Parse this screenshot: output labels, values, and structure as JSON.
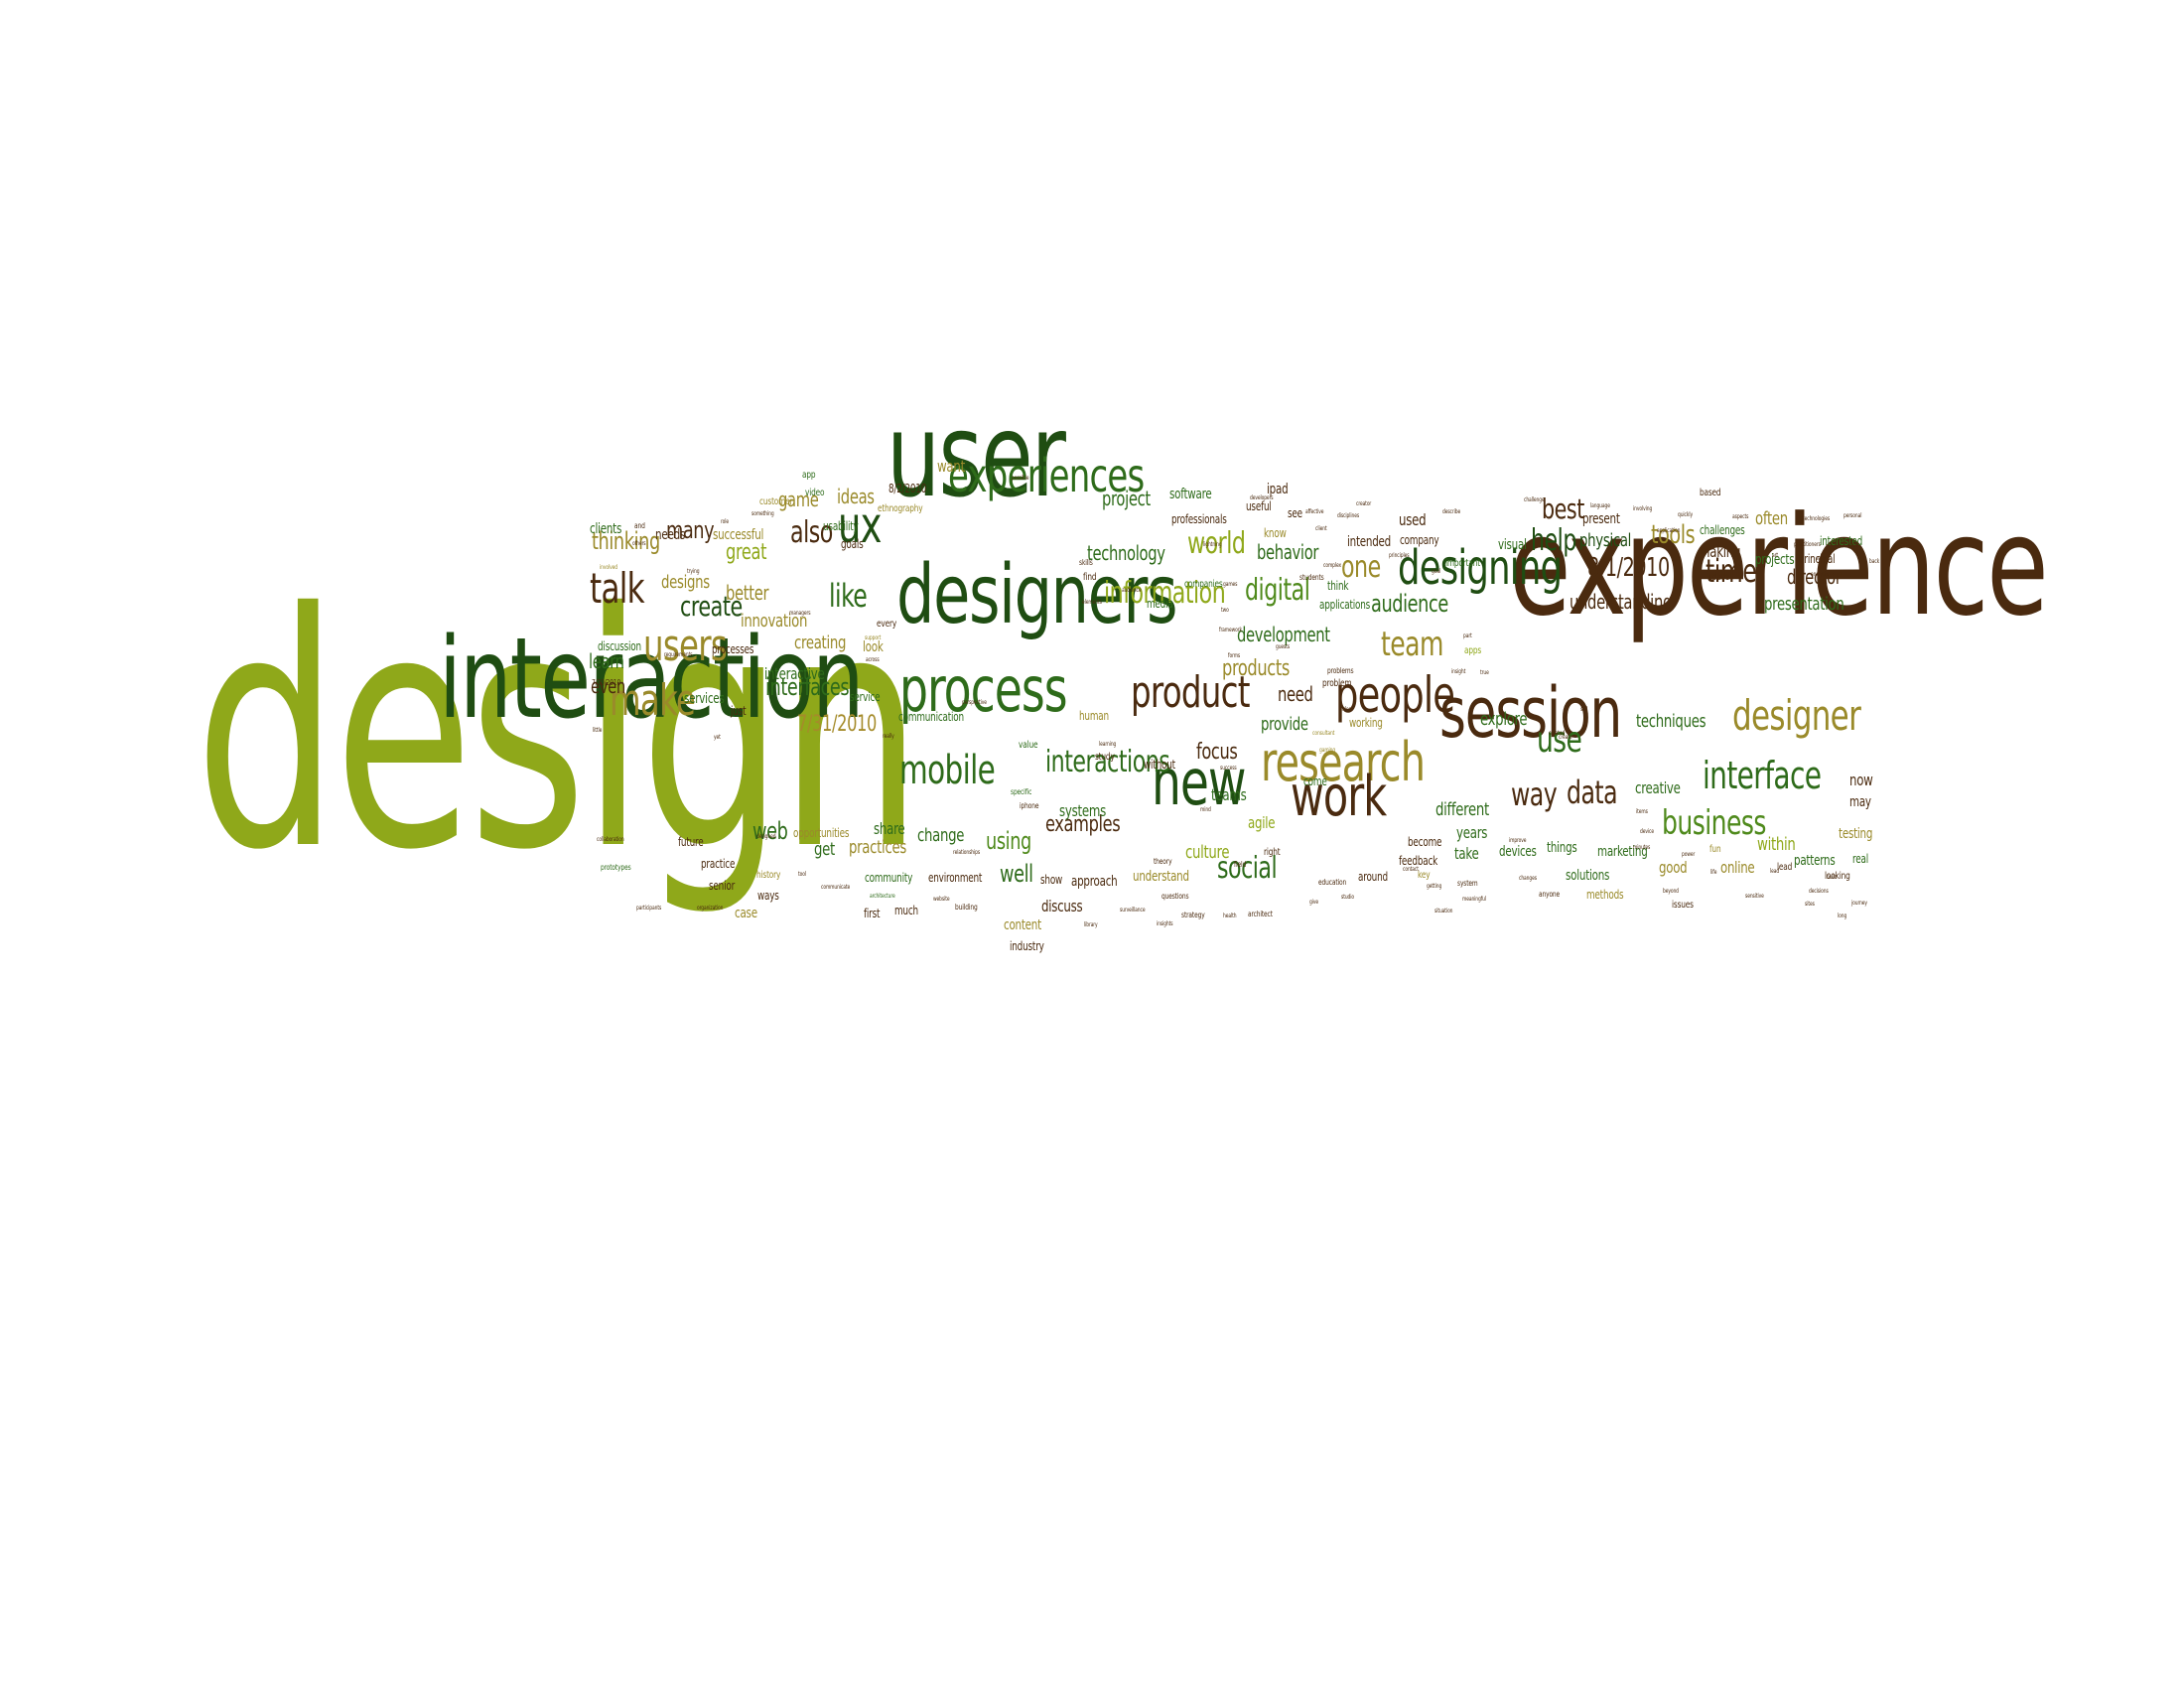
{
  "palette": {
    "lime": "#8fa81a",
    "olive": "#9a8a2a",
    "gold": "#a58b2a",
    "brown": "#4a2a0f",
    "darkgreen": "#1f4d12",
    "green": "#2e6b1a",
    "midgreen": "#4f8a1c"
  },
  "words": [
    {
      "text": "design",
      "color": "lime"
    },
    {
      "text": "experience",
      "color": "brown"
    },
    {
      "text": "interaction",
      "color": "darkgreen"
    },
    {
      "text": "user",
      "color": "darkgreen"
    },
    {
      "text": "designers",
      "color": "darkgreen"
    },
    {
      "text": "process",
      "color": "green"
    },
    {
      "text": "session",
      "color": "brown"
    },
    {
      "text": "research",
      "color": "olive"
    },
    {
      "text": "experiences",
      "color": "green"
    },
    {
      "text": "people",
      "color": "brown"
    },
    {
      "text": "new",
      "color": "darkgreen"
    },
    {
      "text": "work",
      "color": "brown"
    },
    {
      "text": "product",
      "color": "brown"
    },
    {
      "text": "designer",
      "color": "olive"
    },
    {
      "text": "interface",
      "color": "green"
    },
    {
      "text": "designing",
      "color": "darkgreen"
    },
    {
      "text": "mobile",
      "color": "green"
    },
    {
      "text": "users",
      "color": "olive"
    },
    {
      "text": "make",
      "color": "olive"
    },
    {
      "text": "talk",
      "color": "brown"
    },
    {
      "text": "ux",
      "color": "darkgreen"
    },
    {
      "text": "business",
      "color": "midgreen"
    },
    {
      "text": "social",
      "color": "green"
    },
    {
      "text": "interactions",
      "color": "green"
    },
    {
      "text": "information",
      "color": "lime"
    },
    {
      "text": "create",
      "color": "darkgreen"
    },
    {
      "text": "team",
      "color": "olive"
    },
    {
      "text": "use",
      "color": "green"
    },
    {
      "text": "data",
      "color": "brown"
    },
    {
      "text": "way",
      "color": "brown"
    },
    {
      "text": "time",
      "color": "brown"
    },
    {
      "text": "digital",
      "color": "midgreen"
    },
    {
      "text": "world",
      "color": "lime"
    },
    {
      "text": "like",
      "color": "green"
    },
    {
      "text": "also",
      "color": "brown"
    },
    {
      "text": "one",
      "color": "olive"
    },
    {
      "text": "help",
      "color": "darkgreen"
    },
    {
      "text": "best",
      "color": "brown"
    },
    {
      "text": "8/1/2010",
      "color": "brown"
    },
    {
      "text": "tools",
      "color": "olive"
    },
    {
      "text": "audience",
      "color": "green"
    },
    {
      "text": "products",
      "color": "olive"
    },
    {
      "text": "web",
      "color": "green"
    },
    {
      "text": "using",
      "color": "midgreen"
    },
    {
      "text": "examples",
      "color": "brown"
    },
    {
      "text": "well",
      "color": "green"
    },
    {
      "text": "interfaces",
      "color": "green"
    },
    {
      "text": "7/31/2010",
      "color": "gold"
    },
    {
      "text": "many",
      "color": "brown"
    },
    {
      "text": "thinking",
      "color": "olive"
    },
    {
      "text": "great",
      "color": "lime"
    },
    {
      "text": "better",
      "color": "olive"
    },
    {
      "text": "game",
      "color": "olive"
    },
    {
      "text": "ideas",
      "color": "olive"
    },
    {
      "text": "technology",
      "color": "green"
    },
    {
      "text": "behavior",
      "color": "green"
    },
    {
      "text": "development",
      "color": "green"
    },
    {
      "text": "focus",
      "color": "brown"
    },
    {
      "text": "provide",
      "color": "green"
    },
    {
      "text": "need",
      "color": "brown"
    },
    {
      "text": "explore",
      "color": "green"
    },
    {
      "text": "techniques",
      "color": "green"
    },
    {
      "text": "creative",
      "color": "green"
    },
    {
      "text": "presentation",
      "color": "green"
    },
    {
      "text": "director",
      "color": "brown"
    },
    {
      "text": "understanding",
      "color": "brown"
    },
    {
      "text": "physical",
      "color": "darkgreen"
    },
    {
      "text": "project",
      "color": "green"
    },
    {
      "text": "learn",
      "color": "green"
    },
    {
      "text": "even",
      "color": "brown"
    },
    {
      "text": "designs",
      "color": "olive"
    },
    {
      "text": "innovation",
      "color": "olive"
    },
    {
      "text": "creating",
      "color": "olive"
    },
    {
      "text": "interactive",
      "color": "green"
    },
    {
      "text": "services",
      "color": "green"
    },
    {
      "text": "practices",
      "color": "olive"
    },
    {
      "text": "change",
      "color": "green"
    },
    {
      "text": "share",
      "color": "green"
    },
    {
      "text": "get",
      "color": "green"
    },
    {
      "text": "culture",
      "color": "lime"
    },
    {
      "text": "teams",
      "color": "green"
    },
    {
      "text": "agile",
      "color": "lime"
    },
    {
      "text": "years",
      "color": "green"
    },
    {
      "text": "different",
      "color": "green"
    },
    {
      "text": "take",
      "color": "green"
    },
    {
      "text": "devices",
      "color": "green"
    },
    {
      "text": "things",
      "color": "green"
    },
    {
      "text": "marketing",
      "color": "green"
    },
    {
      "text": "solutions",
      "color": "green"
    },
    {
      "text": "good",
      "color": "olive"
    },
    {
      "text": "online",
      "color": "olive"
    },
    {
      "text": "within",
      "color": "lime"
    },
    {
      "text": "patterns",
      "color": "green"
    },
    {
      "text": "testing",
      "color": "olive"
    },
    {
      "text": "now",
      "color": "brown"
    },
    {
      "text": "may",
      "color": "brown"
    },
    {
      "text": "real",
      "color": "green"
    },
    {
      "text": "often",
      "color": "olive"
    },
    {
      "text": "projects",
      "color": "green"
    },
    {
      "text": "interested",
      "color": "green"
    },
    {
      "text": "principal",
      "color": "brown"
    },
    {
      "text": "making",
      "color": "brown"
    },
    {
      "text": "challenges",
      "color": "green"
    },
    {
      "text": "present",
      "color": "brown"
    },
    {
      "text": "visual",
      "color": "green"
    },
    {
      "text": "used",
      "color": "brown"
    },
    {
      "text": "company",
      "color": "brown"
    },
    {
      "text": "intended",
      "color": "brown"
    },
    {
      "text": "applications",
      "color": "green"
    },
    {
      "text": "ipad",
      "color": "brown"
    },
    {
      "text": "software",
      "color": "green"
    },
    {
      "text": "professionals",
      "color": "brown"
    },
    {
      "text": "want",
      "color": "olive"
    },
    {
      "text": "8/2/2010",
      "color": "brown"
    },
    {
      "text": "ethnography",
      "color": "olive"
    },
    {
      "text": "usability",
      "color": "green"
    },
    {
      "text": "goals",
      "color": "brown"
    },
    {
      "text": "successful",
      "color": "olive"
    },
    {
      "text": "needs",
      "color": "brown"
    },
    {
      "text": "clients",
      "color": "green"
    },
    {
      "text": "discussion",
      "color": "green"
    },
    {
      "text": "processes",
      "color": "brown"
    },
    {
      "text": "discuss",
      "color": "brown"
    },
    {
      "text": "content",
      "color": "olive"
    },
    {
      "text": "industry",
      "color": "brown"
    },
    {
      "text": "systems",
      "color": "green"
    },
    {
      "text": "approach",
      "color": "brown"
    },
    {
      "text": "show",
      "color": "brown"
    },
    {
      "text": "understand",
      "color": "olive"
    },
    {
      "text": "community",
      "color": "green"
    },
    {
      "text": "environment",
      "color": "brown"
    },
    {
      "text": "opportunities",
      "color": "olive"
    },
    {
      "text": "ways",
      "color": "brown"
    },
    {
      "text": "case",
      "color": "olive"
    },
    {
      "text": "senior",
      "color": "brown"
    },
    {
      "text": "practice",
      "color": "brown"
    },
    {
      "text": "future",
      "color": "brown"
    },
    {
      "text": "history",
      "color": "olive"
    },
    {
      "text": "much",
      "color": "brown"
    },
    {
      "text": "first",
      "color": "brown"
    },
    {
      "text": "communication",
      "color": "green"
    },
    {
      "text": "human",
      "color": "olive"
    },
    {
      "text": "study",
      "color": "brown"
    },
    {
      "text": "without",
      "color": "brown"
    },
    {
      "text": "companies",
      "color": "green"
    },
    {
      "text": "media",
      "color": "green"
    },
    {
      "text": "working",
      "color": "olive"
    },
    {
      "text": "come",
      "color": "green"
    },
    {
      "text": "around",
      "color": "brown"
    },
    {
      "text": "become",
      "color": "brown"
    },
    {
      "text": "feedback",
      "color": "brown"
    },
    {
      "text": "methods",
      "color": "olive"
    },
    {
      "text": "think",
      "color": "green"
    },
    {
      "text": "problem",
      "color": "brown"
    },
    {
      "text": "just",
      "color": "brown"
    },
    {
      "text": "look",
      "color": "olive"
    },
    {
      "text": "service",
      "color": "green"
    },
    {
      "text": "find",
      "color": "brown"
    },
    {
      "text": "skills",
      "color": "brown"
    },
    {
      "text": "useful",
      "color": "brown"
    },
    {
      "text": "know",
      "color": "olive"
    },
    {
      "text": "see",
      "color": "brown"
    },
    {
      "text": "app",
      "color": "green"
    },
    {
      "text": "video",
      "color": "green"
    },
    {
      "text": "customer",
      "color": "olive"
    },
    {
      "text": "every",
      "color": "brown"
    },
    {
      "text": "right",
      "color": "brown"
    },
    {
      "text": "field",
      "color": "brown"
    },
    {
      "text": "education",
      "color": "brown"
    },
    {
      "text": "key",
      "color": "olive"
    },
    {
      "text": "system",
      "color": "brown"
    },
    {
      "text": "issues",
      "color": "brown"
    },
    {
      "text": "fun",
      "color": "olive"
    },
    {
      "text": "lead",
      "color": "brown"
    },
    {
      "text": "looking",
      "color": "brown"
    },
    {
      "text": "space",
      "color": "brown"
    },
    {
      "text": "important",
      "color": "green"
    },
    {
      "text": "value",
      "color": "green"
    },
    {
      "text": "theory",
      "color": "brown"
    },
    {
      "text": "questions",
      "color": "brown"
    },
    {
      "text": "strategy",
      "color": "brown"
    },
    {
      "text": "architect",
      "color": "brown"
    },
    {
      "text": "anyone",
      "color": "brown"
    },
    {
      "text": "based",
      "color": "brown"
    },
    {
      "text": "specific",
      "color": "green"
    },
    {
      "text": "building",
      "color": "brown"
    },
    {
      "text": "prototypes",
      "color": "green"
    },
    {
      "text": "collaboration",
      "color": "brown"
    },
    {
      "text": "7/30/2010",
      "color": "brown"
    },
    {
      "text": "and",
      "color": "brown"
    },
    {
      "text": "students",
      "color": "brown"
    },
    {
      "text": "problems",
      "color": "brown"
    },
    {
      "text": "apps",
      "color": "lime"
    },
    {
      "text": "iphone",
      "color": "brown"
    },
    {
      "text": "consultant",
      "color": "olive"
    },
    {
      "text": "gaming",
      "color": "olive"
    },
    {
      "text": "perspective",
      "color": "brown"
    },
    {
      "text": "relationships",
      "color": "brown"
    },
    {
      "text": "website",
      "color": "brown"
    },
    {
      "text": "architecture",
      "color": "green"
    },
    {
      "text": "designed",
      "color": "brown"
    },
    {
      "text": "support",
      "color": "olive"
    },
    {
      "text": "something",
      "color": "brown"
    },
    {
      "text": "others",
      "color": "brown"
    },
    {
      "text": "audience",
      "color": "brown"
    },
    {
      "text": "library",
      "color": "brown"
    },
    {
      "text": "complex",
      "color": "brown"
    },
    {
      "text": "describe",
      "color": "brown"
    },
    {
      "text": "challenge",
      "color": "brown"
    },
    {
      "text": "language",
      "color": "brown"
    },
    {
      "text": "involving",
      "color": "brown"
    },
    {
      "text": "technologies",
      "color": "brown"
    },
    {
      "text": "personal",
      "color": "brown"
    },
    {
      "text": "practitioners",
      "color": "brown"
    },
    {
      "text": "easy",
      "color": "brown"
    },
    {
      "text": "quickly",
      "color": "brown"
    },
    {
      "text": "application",
      "color": "brown"
    },
    {
      "text": "aspects",
      "color": "brown"
    },
    {
      "text": "create",
      "color": "brown"
    },
    {
      "text": "build",
      "color": "brown"
    },
    {
      "text": "beyond",
      "color": "brown"
    },
    {
      "text": "journey",
      "color": "brown"
    },
    {
      "text": "long",
      "color": "brown"
    },
    {
      "text": "insight",
      "color": "brown"
    },
    {
      "text": "meaningful",
      "color": "brown"
    },
    {
      "text": "situation",
      "color": "brown"
    },
    {
      "text": "improve",
      "color": "brown"
    },
    {
      "text": "changes",
      "color": "brown"
    },
    {
      "text": "getting",
      "color": "brown"
    },
    {
      "text": "studio",
      "color": "brown"
    },
    {
      "text": "participants",
      "color": "brown"
    },
    {
      "text": "organization",
      "color": "brown"
    },
    {
      "text": "role",
      "color": "brown"
    },
    {
      "text": "managers",
      "color": "brown"
    },
    {
      "text": "trying",
      "color": "brown"
    },
    {
      "text": "involved",
      "color": "olive"
    },
    {
      "text": "requirements",
      "color": "brown"
    },
    {
      "text": "yet",
      "color": "brown"
    },
    {
      "text": "tool",
      "color": "brown"
    },
    {
      "text": "communicate",
      "color": "brown"
    },
    {
      "text": "framework",
      "color": "brown"
    },
    {
      "text": "affective",
      "color": "brown"
    },
    {
      "text": "client",
      "color": "brown"
    },
    {
      "text": "developers",
      "color": "brown"
    },
    {
      "text": "possible",
      "color": "brown"
    },
    {
      "text": "across",
      "color": "brown"
    },
    {
      "text": "really",
      "color": "brown"
    },
    {
      "text": "elements",
      "color": "brown"
    },
    {
      "text": "learning",
      "color": "brown"
    },
    {
      "text": "success",
      "color": "brown"
    },
    {
      "text": "surveillance",
      "color": "brown"
    },
    {
      "text": "insights",
      "color": "brown"
    },
    {
      "text": "health",
      "color": "brown"
    },
    {
      "text": "idea",
      "color": "brown"
    },
    {
      "text": "give",
      "color": "brown"
    },
    {
      "text": "contact",
      "color": "brown"
    },
    {
      "text": "art",
      "color": "brown"
    },
    {
      "text": "back",
      "color": "brown"
    },
    {
      "text": "analysis",
      "color": "brown"
    },
    {
      "text": "must",
      "color": "brown"
    },
    {
      "text": "decisions",
      "color": "brown"
    },
    {
      "text": "sites",
      "color": "brown"
    },
    {
      "text": "sensitive",
      "color": "brown"
    },
    {
      "text": "part",
      "color": "brown"
    },
    {
      "text": "true",
      "color": "brown"
    },
    {
      "text": "goal",
      "color": "brown"
    },
    {
      "text": "principles",
      "color": "brown"
    },
    {
      "text": "creator",
      "color": "brown"
    },
    {
      "text": "disciplines",
      "color": "brown"
    },
    {
      "text": "lightning",
      "color": "brown"
    },
    {
      "text": "games",
      "color": "brown"
    },
    {
      "text": "two",
      "color": "brown"
    },
    {
      "text": "forms",
      "color": "brown"
    },
    {
      "text": "guests",
      "color": "brown"
    },
    {
      "text": "still",
      "color": "brown"
    },
    {
      "text": "created",
      "color": "brown"
    },
    {
      "text": "mind",
      "color": "brown"
    },
    {
      "text": "minutes",
      "color": "brown"
    },
    {
      "text": "device",
      "color": "brown"
    },
    {
      "text": "life",
      "color": "brown"
    },
    {
      "text": "power",
      "color": "brown"
    },
    {
      "text": "little",
      "color": "brown"
    },
    {
      "text": "lead",
      "color": "brown"
    },
    {
      "text": "items",
      "color": "brown"
    }
  ]
}
